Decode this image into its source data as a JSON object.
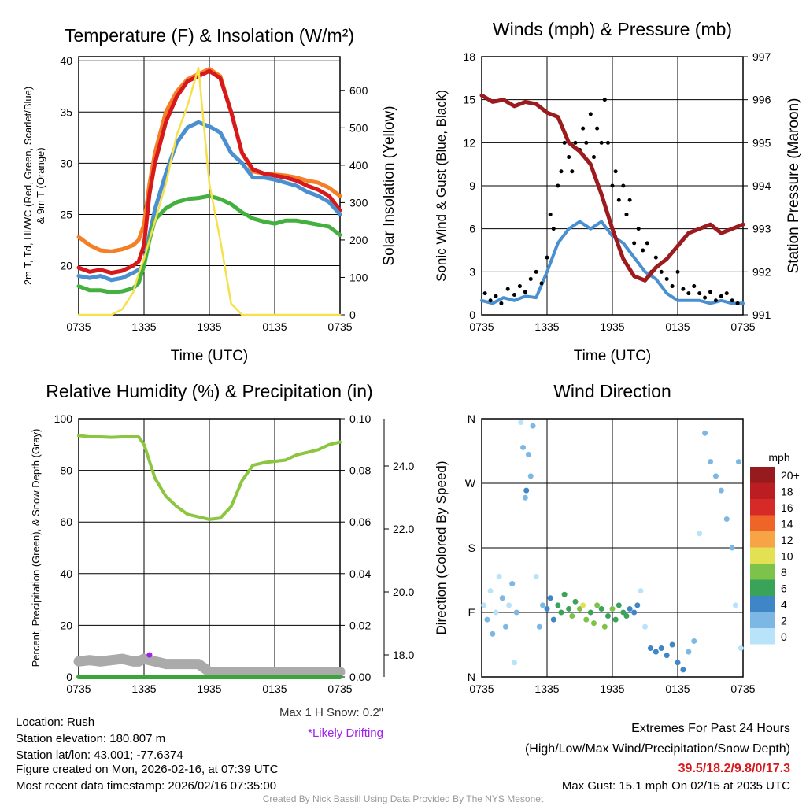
{
  "chart_data": [
    {
      "type": "line",
      "title": "Temperature (F) & Insolation (W/m²)",
      "xlabel": "Time (UTC)",
      "ylabel": "2m T, Td, HI/WC (Red, Green, Scarlet/Blue)",
      "ylabel2": "& 9m T (Orange)",
      "y2label": "Solar Insolation (Yellow)",
      "xticks": [
        "0735",
        "1335",
        "1935",
        "0135",
        "0735"
      ],
      "ylim": [
        15.2,
        40.4
      ],
      "yticks": [
        20,
        25,
        30,
        35,
        40
      ],
      "y2lim": [
        0,
        690
      ],
      "y2ticks": [
        0,
        100,
        200,
        300,
        400,
        500,
        600
      ],
      "hours": [
        0,
        1,
        2,
        3,
        4,
        5,
        5.5,
        6,
        6.5,
        7,
        8,
        9,
        10,
        11,
        12,
        13,
        14,
        15,
        16,
        17,
        18,
        19,
        20,
        21,
        22,
        23,
        24
      ],
      "series": [
        {
          "name": "9m T",
          "color": "#f47f27",
          "values": [
            22.8,
            22,
            21.5,
            21.4,
            21.6,
            22,
            22.5,
            24,
            28,
            31,
            35,
            37,
            38.2,
            38.7,
            39.2,
            38.5,
            35,
            31,
            29.2,
            29,
            28.9,
            28.8,
            28.6,
            28.3,
            28.1,
            27.6,
            26.8
          ]
        },
        {
          "name": "2m T",
          "color": "#d7191c",
          "values": [
            19.8,
            19.4,
            19.6,
            19.3,
            19.5,
            20,
            20.4,
            22,
            27,
            30,
            34,
            36.5,
            38,
            38.5,
            39,
            38.3,
            35,
            31,
            29.4,
            29,
            28.8,
            28.6,
            28.3,
            27.8,
            27.4,
            26.8,
            25.4
          ]
        },
        {
          "name": "Wind chill",
          "color": "#4a90d0",
          "values": [
            19,
            18.8,
            19,
            18.6,
            18.8,
            19.3,
            19.6,
            20,
            23,
            25.5,
            29,
            32,
            33.5,
            34,
            33.6,
            33,
            31,
            30,
            28.6,
            28.6,
            28.4,
            28.1,
            27.8,
            27.2,
            26.8,
            26.2,
            25
          ]
        },
        {
          "name": "Dewpoint",
          "color": "#44b03f",
          "values": [
            18,
            17.6,
            17.6,
            17.4,
            17.5,
            17.8,
            18.3,
            20,
            22.5,
            24.5,
            25.6,
            26.2,
            26.5,
            26.6,
            26.8,
            26.5,
            26,
            25.2,
            24.6,
            24.3,
            24.1,
            24.4,
            24.4,
            24.2,
            24,
            23.8,
            23
          ]
        },
        {
          "name": "Solar Insolation",
          "axis": "right",
          "color": "#f6e04b",
          "values": [
            0,
            0,
            0,
            0,
            15,
            60,
            110,
            150,
            200,
            250,
            350,
            480,
            560,
            660,
            350,
            200,
            30,
            0,
            0,
            0,
            0,
            0,
            0,
            0,
            0,
            0,
            0
          ]
        }
      ]
    },
    {
      "type": "line",
      "title": "Winds (mph) & Pressure (mb)",
      "xlabel": "Time (UTC)",
      "ylabel": "Sonic Wind & Gust (Blue, Black)",
      "y2label": "Station Pressure (Maroon)",
      "xticks": [
        "0735",
        "1335",
        "1935",
        "0135",
        "0735"
      ],
      "ylim": [
        0,
        18
      ],
      "yticks": [
        0,
        3,
        6,
        9,
        12,
        15,
        18
      ],
      "y2lim": [
        991,
        997
      ],
      "y2ticks": [
        991,
        992,
        993,
        994,
        995,
        996,
        997
      ],
      "hours": [
        0,
        1,
        2,
        3,
        4,
        5,
        6,
        7,
        7.5,
        8,
        9,
        10,
        11,
        12,
        13,
        14,
        15,
        16,
        17,
        18,
        19,
        20,
        21,
        22,
        23,
        24
      ],
      "series": [
        {
          "name": "Sonic Wind",
          "color": "#4a90d0",
          "values": [
            1,
            0.8,
            1.2,
            1,
            1.3,
            1.2,
            3,
            5,
            5.5,
            6,
            6.5,
            6,
            6.5,
            5.5,
            5,
            4,
            3,
            2.5,
            1.5,
            1,
            1,
            1,
            0.8,
            1,
            0.8,
            0.8
          ]
        },
        {
          "name": "Station Pressure",
          "axis": "right",
          "color": "#9b1b1e",
          "values": [
            996.1,
            995.95,
            996,
            995.85,
            995.95,
            995.9,
            995.7,
            995.6,
            995.3,
            995,
            994.8,
            994.5,
            993.8,
            993,
            992.3,
            991.9,
            991.8,
            992.1,
            992.3,
            992.6,
            992.9,
            993,
            993.1,
            992.9,
            993,
            993.1
          ]
        }
      ],
      "gusts": {
        "name": "Gust",
        "color": "#000000",
        "hours": [
          0.3,
          0.8,
          1.3,
          1.8,
          2.4,
          3,
          3.5,
          4,
          4.5,
          5,
          5.5,
          6,
          6.3,
          6.6,
          7,
          7.3,
          7.6,
          8,
          8.3,
          8.6,
          9,
          9.3,
          9.6,
          10,
          10.3,
          10.6,
          11,
          11.3,
          11.6,
          12,
          12.3,
          12.6,
          13,
          13.3,
          13.6,
          14,
          14.4,
          14.8,
          15.2,
          15.6,
          16,
          16.5,
          17,
          17.5,
          18,
          18.5,
          19,
          19.5,
          20,
          20.5,
          21,
          21.5,
          22,
          22.5,
          23,
          23.5
        ],
        "values": [
          1.5,
          1,
          1.3,
          0.8,
          1.8,
          1.4,
          2,
          1.6,
          2.5,
          3,
          2.2,
          4,
          7,
          6,
          9,
          10,
          12,
          11,
          10,
          12,
          11.5,
          13,
          12,
          14,
          11,
          13,
          12,
          15,
          12,
          9,
          10,
          8,
          9,
          7,
          8,
          5,
          6,
          4.5,
          5,
          3,
          4,
          3,
          2.5,
          2,
          3,
          1.8,
          1.5,
          2,
          1.5,
          1.2,
          1.6,
          1,
          1.3,
          1.5,
          1,
          0.8
        ]
      }
    },
    {
      "type": "line",
      "title": "Relative Humidity (%) & Precipitation (in)",
      "xlabel": "",
      "ylabel": "Percent, Precipitation (Green), & Snow Depth (Gray)",
      "xticks": [
        "0735",
        "1335",
        "1935",
        "0135",
        "0735"
      ],
      "ylim": [
        0,
        100
      ],
      "yticks": [
        0,
        20,
        40,
        60,
        80,
        100
      ],
      "y2lim": [
        0,
        0.1
      ],
      "y2ticks": [
        "0.00",
        "0.02",
        "0.04",
        "0.06",
        "0.08",
        "0.10"
      ],
      "y3ticks": [
        "18.0",
        "20.0",
        "22.0",
        "24.0"
      ],
      "hours": [
        0,
        1,
        2,
        3,
        4,
        5,
        5.5,
        6,
        7,
        8,
        9,
        10,
        11,
        12,
        13,
        14,
        15,
        16,
        17,
        18,
        19,
        20,
        21,
        22,
        23,
        24
      ],
      "series": [
        {
          "name": "Relative Humidity",
          "color": "#8cc640",
          "values": [
            93.5,
            93,
            93,
            92.8,
            93,
            93,
            93,
            90,
            77,
            70,
            66,
            63,
            62,
            61,
            61.5,
            66,
            76,
            82,
            83,
            83.5,
            84,
            86,
            87,
            88,
            90,
            91
          ]
        },
        {
          "name": "Precipitation",
          "color": "#3aa53a",
          "values": [
            0,
            0,
            0,
            0,
            0,
            0,
            0,
            0,
            0,
            0,
            0,
            0,
            0,
            0,
            0,
            0,
            0,
            0,
            0,
            0,
            0,
            0,
            0,
            0,
            0,
            0
          ]
        },
        {
          "name": "Snow Depth",
          "color": "#aaaaaa",
          "values": [
            6,
            6.5,
            6,
            6.5,
            7,
            6,
            6,
            7,
            6,
            5,
            5,
            5,
            5,
            2,
            2,
            2,
            2,
            2,
            2,
            2,
            2,
            2,
            2,
            2,
            2,
            2
          ]
        }
      ],
      "drifting_point": {
        "hour": 6.5,
        "value": 8.5,
        "color": "#a020f0"
      },
      "max_snow_label": "Max 1 H Snow: 0.2\"",
      "drifting_label": "*Likely Drifting"
    },
    {
      "type": "scatter",
      "title": "Wind Direction",
      "ylabel": "Direction (Colored By Speed)",
      "xticks": [
        "0735",
        "1335",
        "1935",
        "0135",
        "0735"
      ],
      "yticks": [
        "N",
        "E",
        "S",
        "W",
        "N"
      ],
      "ylim": [
        0,
        360
      ],
      "legend": {
        "title": "mph",
        "labels": [
          "20+",
          "18",
          "16",
          "14",
          "12",
          "10",
          "8",
          "6",
          "4",
          "2",
          "0"
        ],
        "colors": [
          "#951b1e",
          "#bb1e22",
          "#d62a28",
          "#ef6527",
          "#f6a446",
          "#e3e054",
          "#7cc24b",
          "#3aa35a",
          "#3f86c6",
          "#7cb8e3",
          "#b9e3f8"
        ]
      },
      "points": [
        [
          0.2,
          100,
          0
        ],
        [
          0.5,
          80,
          1
        ],
        [
          0.8,
          120,
          0
        ],
        [
          1,
          60,
          1
        ],
        [
          1.3,
          90,
          0
        ],
        [
          1.6,
          140,
          0
        ],
        [
          1.9,
          110,
          1
        ],
        [
          2.2,
          70,
          1
        ],
        [
          2.5,
          100,
          0
        ],
        [
          2.8,
          130,
          1
        ],
        [
          3,
          20,
          0
        ],
        [
          3.2,
          90,
          1
        ],
        [
          3.6,
          355,
          0
        ],
        [
          3.8,
          320,
          1
        ],
        [
          4,
          250,
          2
        ],
        [
          4.1,
          260,
          3
        ],
        [
          4.3,
          310,
          1
        ],
        [
          4.5,
          280,
          2
        ],
        [
          4.7,
          350,
          1
        ],
        [
          5,
          140,
          0
        ],
        [
          5.3,
          70,
          1
        ],
        [
          5.6,
          100,
          2
        ],
        [
          6,
          95,
          3
        ],
        [
          6.3,
          110,
          4
        ],
        [
          6.6,
          80,
          4
        ],
        [
          7,
          100,
          5
        ],
        [
          7.3,
          90,
          6
        ],
        [
          7.6,
          115,
          5
        ],
        [
          8,
          95,
          6
        ],
        [
          8.3,
          85,
          7
        ],
        [
          8.6,
          105,
          6
        ],
        [
          9,
          95,
          8
        ],
        [
          9.3,
          100,
          10
        ],
        [
          9.6,
          80,
          7
        ],
        [
          10,
          90,
          6
        ],
        [
          10.3,
          75,
          7
        ],
        [
          10.6,
          100,
          8
        ],
        [
          11,
          95,
          6
        ],
        [
          11.3,
          70,
          7
        ],
        [
          11.6,
          85,
          6
        ],
        [
          12,
          95,
          7
        ],
        [
          12.3,
          80,
          6
        ],
        [
          12.6,
          100,
          5
        ],
        [
          13,
          90,
          6
        ],
        [
          13.3,
          85,
          5
        ],
        [
          13.6,
          95,
          4
        ],
        [
          14,
          90,
          3
        ],
        [
          14.3,
          100,
          3
        ],
        [
          14.6,
          120,
          0
        ],
        [
          15,
          70,
          0
        ],
        [
          15.5,
          40,
          3
        ],
        [
          16,
          35,
          4
        ],
        [
          16.5,
          40,
          4
        ],
        [
          17,
          30,
          3
        ],
        [
          17.5,
          45,
          3
        ],
        [
          18,
          20,
          4
        ],
        [
          18.5,
          10,
          3
        ],
        [
          19,
          35,
          2
        ],
        [
          19.5,
          50,
          2
        ],
        [
          20,
          200,
          0
        ],
        [
          20.5,
          340,
          1
        ],
        [
          21,
          300,
          1
        ],
        [
          21.5,
          280,
          2
        ],
        [
          22,
          260,
          2
        ],
        [
          22.5,
          220,
          2
        ],
        [
          23,
          180,
          1
        ],
        [
          23.3,
          100,
          0
        ],
        [
          23.6,
          300,
          1
        ],
        [
          23.8,
          40,
          0
        ]
      ]
    }
  ],
  "info": {
    "location": "Location: Rush",
    "elevation": "Station elevation: 180.807 m",
    "latlon": "Station lat/lon: 43.001; -77.6374",
    "created": "Figure created on Mon, 2026-02-16, at 07:39 UTC",
    "recent": "Most recent data timestamp: 2026/02/16 07:35:00"
  },
  "extremes": {
    "title": "Extremes For Past 24 Hours",
    "subtitle": "(High/Low/Max Wind/Precipitation/Snow Depth)",
    "values": "39.5/18.2/9.8/0/17.3",
    "max_gust": "Max Gust: 15.1 mph On 02/15 at 2035 UTC",
    "color": "#d7191c"
  },
  "credit": "Created By Nick Bassill Using Data Provided By The NYS Mesonet"
}
